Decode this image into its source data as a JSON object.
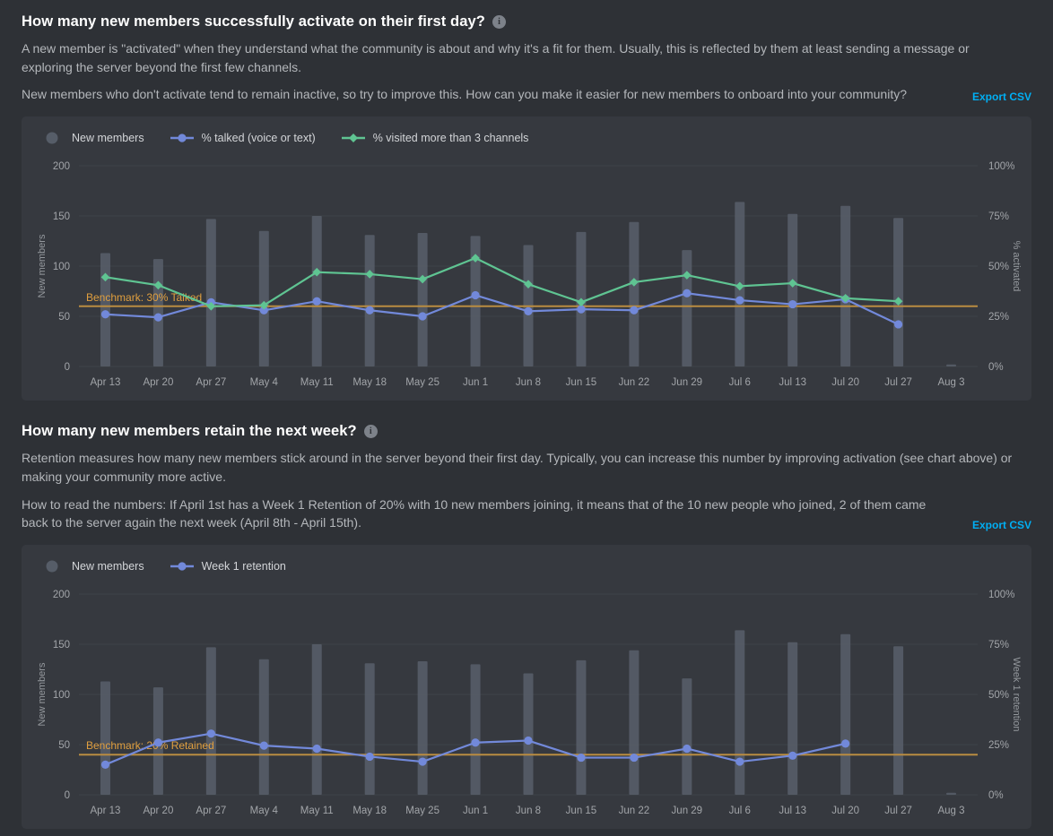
{
  "theme": {
    "page_bg": "#2e3136",
    "panel_bg": "#36393f",
    "grid_color": "#3f434a",
    "tick_color": "#a2a5a9",
    "axis_title_color": "#94989d",
    "legend_text_color": "#d3d5d8",
    "link_color": "#00aff4",
    "benchmark_line_color": "#b98c41",
    "benchmark_text_color": "#e09f3f",
    "bar_color": "#565d68",
    "blurple": "#7289da",
    "green": "#5fc492"
  },
  "sections": [
    {
      "title": "How many new members successfully activate on their first day?",
      "info_icon_glyph": "i",
      "paragraphs": [
        "A new member is \"activated\" when they understand what the community is about and why it's a fit for them. Usually, this is reflected by them at least sending a message or exploring the server beyond the first few channels.",
        "New members who don't activate tend to remain inactive, so try to improve this. How can you make it easier for new members to onboard into your community?"
      ],
      "export_label": "Export CSV",
      "chart_data": {
        "type": "bar+line",
        "categories": [
          "Apr 13",
          "Apr 20",
          "Apr 27",
          "May 4",
          "May 11",
          "May 18",
          "May 25",
          "Jun 1",
          "Jun 8",
          "Jun 15",
          "Jun 22",
          "Jun 29",
          "Jul 6",
          "Jul 13",
          "Jul 20",
          "Jul 27",
          "Aug 3"
        ],
        "left_axis": {
          "label": "New members",
          "ticks": [
            0,
            50,
            100,
            150,
            200
          ],
          "max": 200
        },
        "right_axis": {
          "label": "% activated",
          "ticks": [
            "0%",
            "25%",
            "50%",
            "75%",
            "100%"
          ],
          "max": 100
        },
        "benchmark": {
          "label": "Benchmark: 30% Talked",
          "value_pct": 30
        },
        "series": [
          {
            "name": "New members",
            "type": "bar",
            "axis": "left",
            "color": "#565d68",
            "values": [
              113,
              107,
              147,
              135,
              150,
              131,
              133,
              130,
              121,
              134,
              144,
              116,
              164,
              152,
              160,
              148,
              2
            ]
          },
          {
            "name": "% talked (voice or text)",
            "type": "line",
            "marker": "circle",
            "axis": "right",
            "color": "#7289da",
            "values": [
              26,
              24.5,
              32,
              28,
              32.5,
              28,
              25,
              35.5,
              27.5,
              28.5,
              28,
              36.5,
              33,
              31,
              33.5,
              21,
              null
            ]
          },
          {
            "name": "% visited more than 3 channels",
            "type": "line",
            "marker": "diamond",
            "axis": "right",
            "color": "#5fc492",
            "values": [
              44.5,
              40.5,
              30,
              30.5,
              47,
              46,
              43.5,
              54,
              41,
              32,
              42,
              45.5,
              40,
              41.5,
              34,
              32.5,
              null
            ]
          }
        ],
        "grid": true,
        "legend_position": "top-left"
      }
    },
    {
      "title": "How many new members retain the next week?",
      "info_icon_glyph": "i",
      "paragraphs": [
        "Retention measures how many new members stick around in the server beyond their first day. Typically, you can increase this number by improving activation (see chart above) or making your community more active.",
        "How to read the numbers: If April 1st has a Week 1 Retention of 20% with 10 new members joining, it means that of the 10 new people who joined, 2 of them came back to the server again the next week (April 8th - April 15th)."
      ],
      "export_label": "Export CSV",
      "chart_data": {
        "type": "bar+line",
        "categories": [
          "Apr 13",
          "Apr 20",
          "Apr 27",
          "May 4",
          "May 11",
          "May 18",
          "May 25",
          "Jun 1",
          "Jun 8",
          "Jun 15",
          "Jun 22",
          "Jun 29",
          "Jul 6",
          "Jul 13",
          "Jul 20",
          "Jul 27",
          "Aug 3"
        ],
        "left_axis": {
          "label": "New members",
          "ticks": [
            0,
            50,
            100,
            150,
            200
          ],
          "max": 200
        },
        "right_axis": {
          "label": "Week 1 retention",
          "ticks": [
            "0%",
            "25%",
            "50%",
            "75%",
            "100%"
          ],
          "max": 100
        },
        "benchmark": {
          "label": "Benchmark: 20% Retained",
          "value_pct": 20
        },
        "series": [
          {
            "name": "New members",
            "type": "bar",
            "axis": "left",
            "color": "#565d68",
            "values": [
              113,
              107,
              147,
              135,
              150,
              131,
              133,
              130,
              121,
              134,
              144,
              116,
              164,
              152,
              160,
              148,
              2
            ]
          },
          {
            "name": "Week 1 retention",
            "type": "line",
            "marker": "circle",
            "axis": "right",
            "color": "#7289da",
            "values": [
              15,
              26,
              30.5,
              24.5,
              23,
              19,
              16.5,
              26,
              27,
              18.5,
              18.5,
              23,
              16.5,
              19.5,
              25.5,
              null,
              null
            ]
          }
        ],
        "grid": true,
        "legend_position": "top-left"
      }
    }
  ]
}
